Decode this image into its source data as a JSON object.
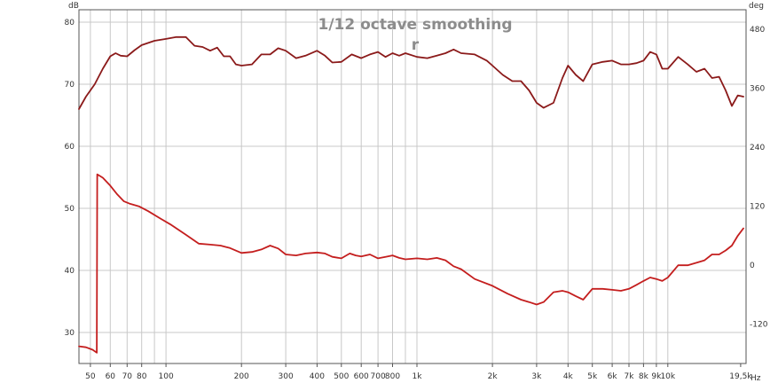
{
  "chart_data": {
    "type": "line",
    "title": "1/12 octave smoothing",
    "subtitle": "r",
    "y_unit_left": "dB",
    "y_unit_right": "deg",
    "x_unit": "Hz",
    "xscale": "log",
    "xlim": [
      45,
      20500
    ],
    "ylim_left": [
      25,
      82
    ],
    "ylim_right": [
      -200,
      520
    ],
    "grid": true,
    "x_ticks": [
      {
        "value": 50,
        "label": "50"
      },
      {
        "value": 60,
        "label": "60"
      },
      {
        "value": 70,
        "label": "70"
      },
      {
        "value": 80,
        "label": "80"
      },
      {
        "value": 100,
        "label": "100"
      },
      {
        "value": 200,
        "label": "200"
      },
      {
        "value": 300,
        "label": "300"
      },
      {
        "value": 400,
        "label": "400"
      },
      {
        "value": 500,
        "label": "500"
      },
      {
        "value": 600,
        "label": "600"
      },
      {
        "value": 700,
        "label": "700"
      },
      {
        "value": 800,
        "label": "800"
      },
      {
        "value": 1000,
        "label": "1k"
      },
      {
        "value": 2000,
        "label": "2k"
      },
      {
        "value": 3000,
        "label": "3k"
      },
      {
        "value": 4000,
        "label": "4k"
      },
      {
        "value": 5000,
        "label": "5k"
      },
      {
        "value": 6000,
        "label": "6k"
      },
      {
        "value": 7000,
        "label": "7k"
      },
      {
        "value": 8000,
        "label": "8k"
      },
      {
        "value": 9000,
        "label": "9k"
      },
      {
        "value": 10000,
        "label": "10k"
      },
      {
        "value": 19500,
        "label": "19,5k"
      }
    ],
    "y_ticks_left": [
      {
        "value": 80,
        "label": "80"
      },
      {
        "value": 70,
        "label": "70"
      },
      {
        "value": 60,
        "label": "60"
      },
      {
        "value": 50,
        "label": "50"
      },
      {
        "value": 40,
        "label": "40"
      },
      {
        "value": 30,
        "label": "30"
      }
    ],
    "y_ticks_right": [
      {
        "value": 480,
        "label": "480"
      },
      {
        "value": 360,
        "label": "360"
      },
      {
        "value": 240,
        "label": "240"
      },
      {
        "value": 120,
        "label": "120"
      },
      {
        "value": 0,
        "label": "0"
      },
      {
        "value": -120,
        "label": "-120"
      }
    ],
    "series": [
      {
        "axis": "left",
        "color": "#8b1a1a",
        "x": [
          45,
          48,
          52,
          56,
          60,
          63,
          66,
          70,
          75,
          80,
          90,
          100,
          110,
          120,
          130,
          140,
          150,
          160,
          170,
          180,
          190,
          200,
          220,
          240,
          260,
          280,
          300,
          330,
          360,
          400,
          430,
          460,
          500,
          550,
          600,
          650,
          700,
          750,
          800,
          850,
          900,
          1000,
          1100,
          1200,
          1300,
          1400,
          1500,
          1700,
          1900,
          2000,
          2200,
          2400,
          2600,
          2800,
          3000,
          3200,
          3500,
          3800,
          4000,
          4300,
          4600,
          5000,
          5500,
          6000,
          6500,
          7000,
          7500,
          8000,
          8500,
          9000,
          9500,
          10000,
          11000,
          12000,
          13000,
          14000,
          15000,
          16000,
          17000,
          18000,
          19000,
          20000
        ],
        "y": [
          66.0,
          68.0,
          70.0,
          72.5,
          74.5,
          75.0,
          74.6,
          74.5,
          75.5,
          76.3,
          77.0,
          77.3,
          77.6,
          77.6,
          76.2,
          76.0,
          75.4,
          75.9,
          74.5,
          74.5,
          73.2,
          73.0,
          73.2,
          74.8,
          74.8,
          75.8,
          75.4,
          74.2,
          74.6,
          75.4,
          74.6,
          73.5,
          73.6,
          74.8,
          74.2,
          74.8,
          75.2,
          74.4,
          75.0,
          74.6,
          75.0,
          74.4,
          74.2,
          74.6,
          75.0,
          75.6,
          75.0,
          74.8,
          73.8,
          73.0,
          71.5,
          70.5,
          70.5,
          69.0,
          67.0,
          66.2,
          67.0,
          71.0,
          73.0,
          71.5,
          70.5,
          73.2,
          73.6,
          73.8,
          73.2,
          73.2,
          73.4,
          73.8,
          75.2,
          74.8,
          72.5,
          72.5,
          74.4,
          73.2,
          72.0,
          72.5,
          71.0,
          71.2,
          69.0,
          66.5,
          68.2,
          68.0
        ]
      },
      {
        "axis": "right",
        "color": "#c41e1e",
        "x": [
          45,
          48,
          51,
          53,
          53.2,
          56,
          60,
          64,
          68,
          72,
          78,
          85,
          95,
          105,
          120,
          135,
          150,
          165,
          180,
          200,
          220,
          240,
          260,
          280,
          300,
          330,
          360,
          400,
          430,
          460,
          500,
          540,
          570,
          600,
          650,
          700,
          750,
          800,
          850,
          900,
          1000,
          1100,
          1200,
          1300,
          1400,
          1500,
          1700,
          2000,
          2300,
          2600,
          2800,
          3000,
          3200,
          3500,
          3800,
          4000,
          4300,
          4600,
          5000,
          5500,
          6000,
          6500,
          7000,
          7500,
          8000,
          8500,
          9000,
          9500,
          10000,
          11000,
          12000,
          13000,
          14000,
          15000,
          16000,
          17000,
          18000,
          19000,
          20000
        ],
        "y": [
          -165,
          -167,
          -172,
          -178,
          185,
          178,
          162,
          144,
          130,
          125,
          120,
          110,
          95,
          82,
          62,
          44,
          42,
          40,
          35,
          25,
          27,
          32,
          40,
          34,
          22,
          20,
          24,
          26,
          24,
          17,
          14,
          24,
          20,
          18,
          22,
          14,
          17,
          20,
          15,
          12,
          14,
          12,
          15,
          10,
          -2,
          -8,
          -28,
          -42,
          -58,
          -70,
          -75,
          -80,
          -75,
          -55,
          -52,
          -55,
          -63,
          -70,
          -48,
          -48,
          -50,
          -52,
          -48,
          -40,
          -32,
          -25,
          -28,
          -32,
          -25,
          0,
          0,
          5,
          10,
          22,
          22,
          30,
          40,
          60,
          75
        ]
      }
    ]
  }
}
